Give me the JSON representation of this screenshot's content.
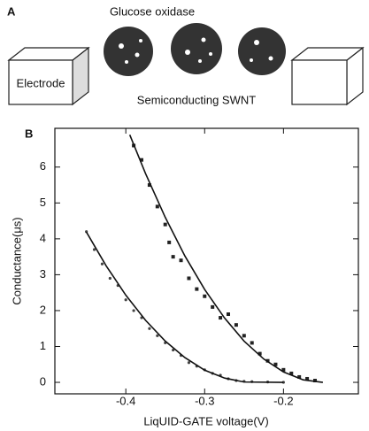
{
  "panel_a": {
    "label": "A",
    "enzyme": "Glucose oxidase",
    "electrode": "Electrode",
    "tube": "Semiconducting SWNT"
  },
  "chart_data": {
    "type": "scatter",
    "panel_label": "B",
    "x_label": "LiqUID-GATE voltage(V)",
    "y_label": "Conductance(μs)",
    "xlim": [
      -0.49,
      -0.105
    ],
    "ylim": [
      -0.32,
      7.08
    ],
    "xticks": [
      -0.4,
      -0.3,
      -0.2
    ],
    "yticks": [
      0,
      1,
      2,
      3,
      4,
      5,
      6
    ],
    "series": [
      {
        "style": "markers",
        "marker": "square",
        "color": "#222",
        "x": [
          -0.39,
          -0.38,
          -0.37,
          -0.36,
          -0.35,
          -0.345,
          -0.34,
          -0.33,
          -0.32,
          -0.31,
          -0.3,
          -0.29,
          -0.28,
          -0.27,
          -0.26,
          -0.25,
          -0.24,
          -0.23,
          -0.22,
          -0.21,
          -0.2,
          -0.19,
          -0.18,
          -0.17,
          -0.16
        ],
        "values": [
          6.6,
          6.2,
          5.5,
          4.9,
          4.4,
          3.9,
          3.5,
          3.4,
          2.9,
          2.6,
          2.4,
          2.1,
          1.8,
          1.9,
          1.6,
          1.3,
          1.1,
          0.8,
          0.6,
          0.5,
          0.35,
          0.25,
          0.15,
          0.1,
          0.05
        ]
      },
      {
        "style": "markers",
        "marker": "dot",
        "color": "#444",
        "x": [
          -0.45,
          -0.44,
          -0.43,
          -0.42,
          -0.41,
          -0.4,
          -0.39,
          -0.38,
          -0.37,
          -0.36,
          -0.35,
          -0.34,
          -0.33,
          -0.32,
          -0.31,
          -0.3,
          -0.29,
          -0.28,
          -0.27,
          -0.26,
          -0.25,
          -0.24,
          -0.22,
          -0.2
        ],
        "values": [
          4.2,
          3.7,
          3.3,
          2.9,
          2.7,
          2.3,
          2.0,
          1.8,
          1.5,
          1.3,
          1.1,
          0.9,
          0.75,
          0.55,
          0.45,
          0.35,
          0.25,
          0.2,
          0.1,
          0.05,
          0.03,
          0.02,
          0.01,
          0.0
        ]
      },
      {
        "style": "line",
        "color": "#111",
        "x": [
          -0.395,
          -0.375,
          -0.35,
          -0.325,
          -0.3,
          -0.275,
          -0.25,
          -0.225,
          -0.2,
          -0.175,
          -0.15
        ],
        "values": [
          6.9,
          5.82,
          4.6,
          3.52,
          2.59,
          1.8,
          1.15,
          0.65,
          0.29,
          0.07,
          0.0
        ]
      },
      {
        "style": "line",
        "color": "#111",
        "x": [
          -0.45,
          -0.425,
          -0.4,
          -0.375,
          -0.35,
          -0.325,
          -0.3,
          -0.275,
          -0.25,
          -0.2
        ],
        "values": [
          4.19,
          3.25,
          2.43,
          1.73,
          1.15,
          0.69,
          0.34,
          0.12,
          0.01,
          0.0
        ]
      }
    ]
  }
}
